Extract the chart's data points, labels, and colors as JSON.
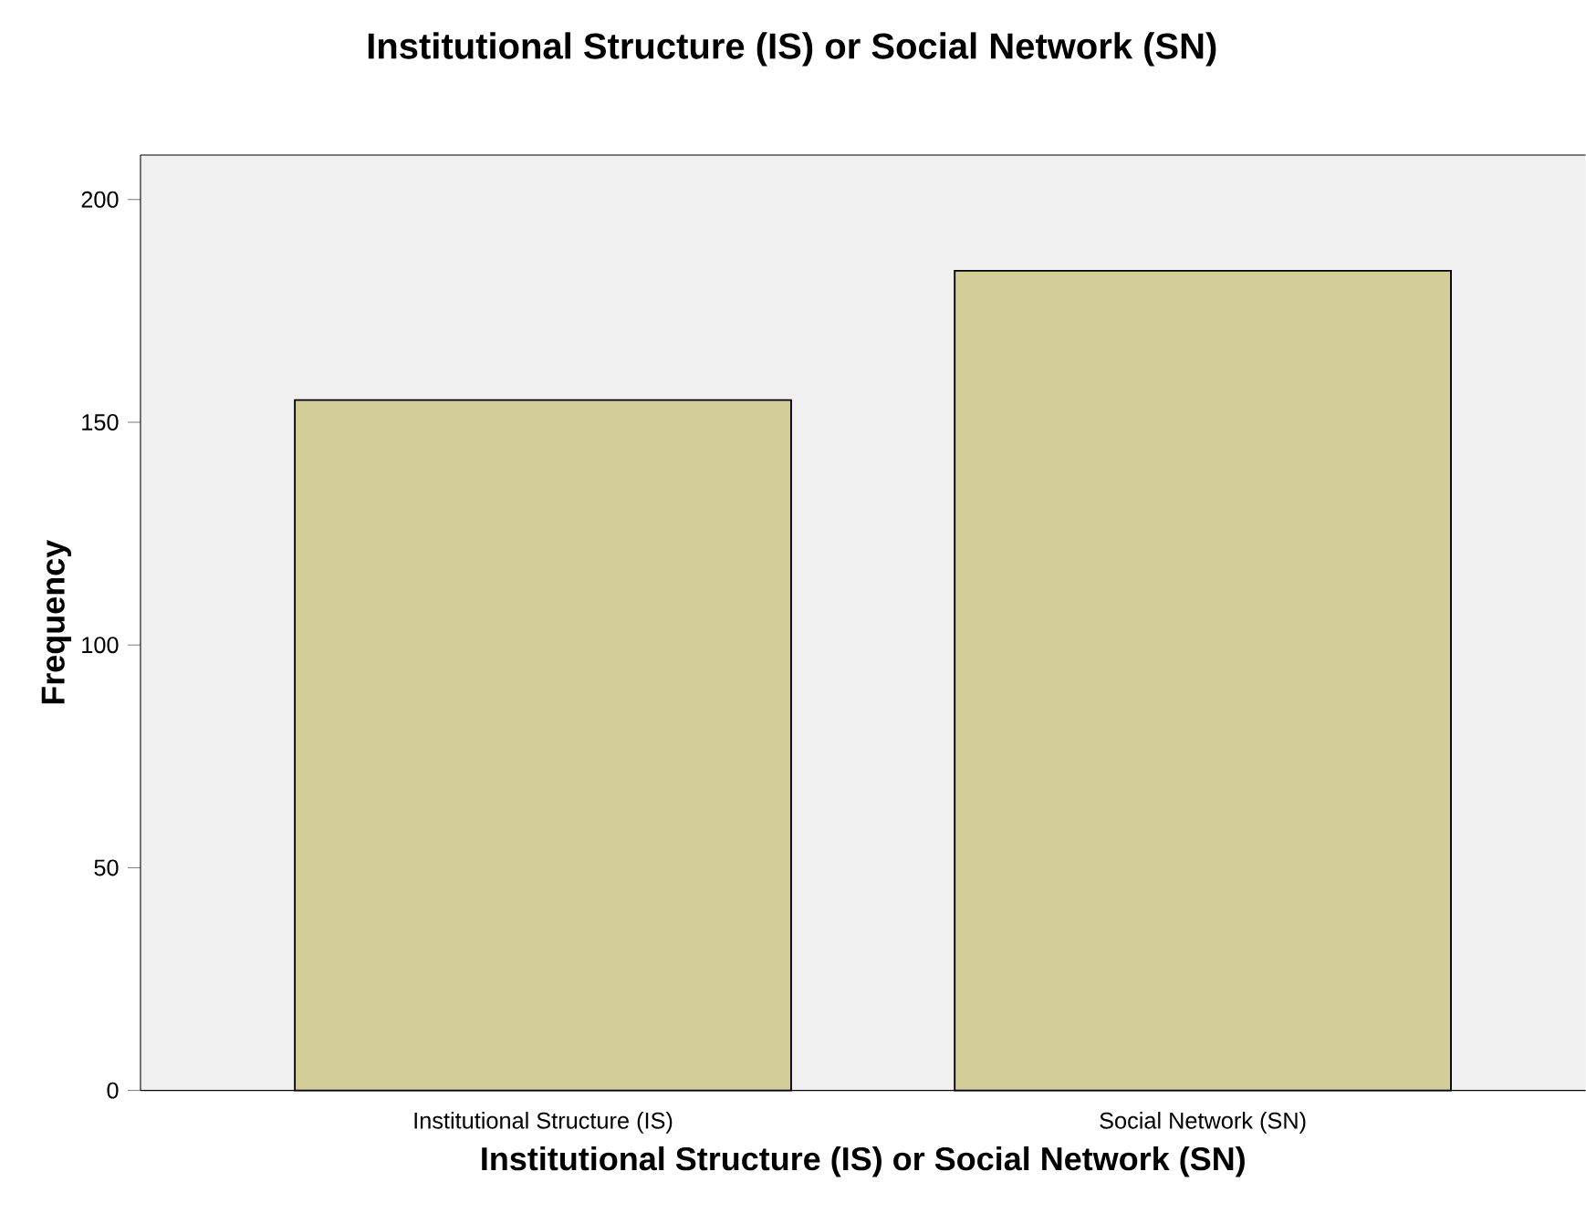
{
  "chart_data": {
    "type": "bar",
    "title": "Institutional Structure (IS) or Social Network (SN)",
    "categories": [
      "Institutional Structure (IS)",
      "Social Network (SN)"
    ],
    "values": [
      155,
      184
    ],
    "color": "#d3ce97",
    "xlabel": "Institutional Structure (IS) or Social Network (SN)",
    "ylabel": "Frequency",
    "ylim": [
      0,
      210
    ],
    "yticks": [
      0,
      50,
      100,
      150,
      200
    ],
    "grid": false
  }
}
